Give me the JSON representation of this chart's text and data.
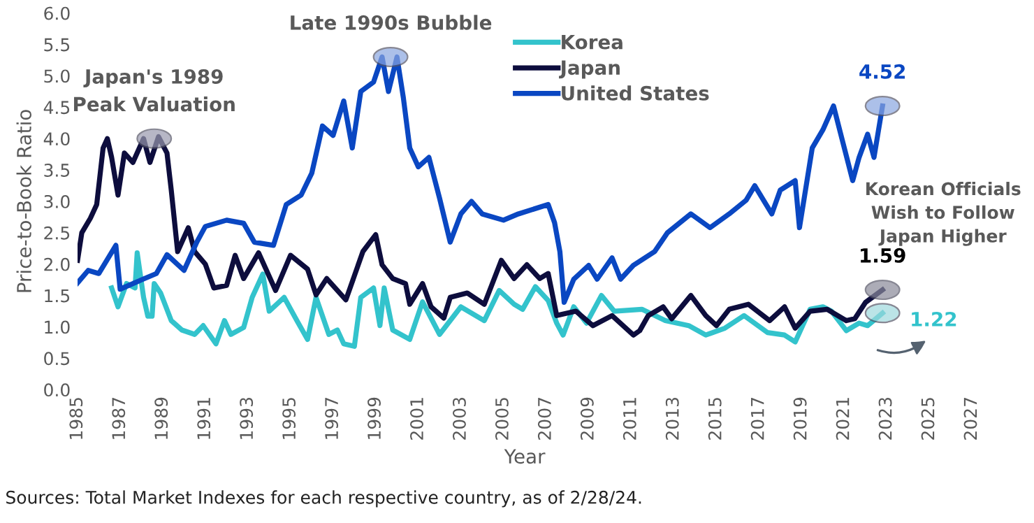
{
  "chart_data": {
    "type": "line",
    "xlabel": "Year",
    "ylabel": "Price-to-Book Ratio",
    "xlim": [
      1985,
      2027
    ],
    "xticks": [
      1985,
      1987,
      1989,
      1991,
      1993,
      1995,
      1997,
      1999,
      2001,
      2003,
      2005,
      2007,
      2009,
      2011,
      2013,
      2015,
      2017,
      2019,
      2021,
      2023,
      2025,
      2027
    ],
    "ylim": [
      0.0,
      6.0
    ],
    "yticks": [
      {
        "value": 0,
        "label": "0.0"
      },
      0.5,
      {
        "value": 1,
        "label": "1.0"
      },
      1.5,
      {
        "value": 2,
        "label": "2.0"
      },
      2.5,
      {
        "value": 3,
        "label": "3.0"
      },
      3.5,
      {
        "value": 4,
        "label": "4.0"
      },
      4.5,
      {
        "value": 5,
        "label": "5.0"
      },
      5.5,
      {
        "value": 6,
        "label": "6.0"
      }
    ],
    "grid": false,
    "legend": "top",
    "marker": "none",
    "line_style": "solid",
    "series": [
      {
        "name": "Korea",
        "color": "#33c3cc",
        "x": [
          1986.6,
          1986.9,
          1987.3,
          1987.7,
          1987.8,
          1988.1,
          1988.3,
          1988.5,
          1988.6,
          1988.9,
          1989.4,
          1989.9,
          1990.5,
          1990.9,
          1991.5,
          1991.9,
          1992.2,
          1992.8,
          1993.2,
          1993.7,
          1994.0,
          1994.7,
          1995.3,
          1995.8,
          1996.2,
          1996.8,
          1997.2,
          1997.5,
          1998.0,
          1998.3,
          1998.9,
          1999.2,
          1999.4,
          1999.8,
          2000.6,
          2001.2,
          2002.0,
          2003.0,
          2004.1,
          2004.8,
          2005.5,
          2005.9,
          2006.5,
          2007.1,
          2007.5,
          2007.8,
          2008.3,
          2008.9,
          2009.6,
          2010.2,
          2011.5,
          2012.6,
          2013.7,
          2014.5,
          2015.4,
          2016.3,
          2017.4,
          2018.2,
          2018.7,
          2019.4,
          2020.0,
          2020.4,
          2021.1,
          2021.7,
          2022.1,
          2022.8
        ],
        "values": [
          1.62,
          1.32,
          1.69,
          1.62,
          2.18,
          1.47,
          1.17,
          1.17,
          1.69,
          1.54,
          1.1,
          0.95,
          0.88,
          1.02,
          0.73,
          1.1,
          0.88,
          0.99,
          1.47,
          1.84,
          1.25,
          1.47,
          1.1,
          0.8,
          1.47,
          0.88,
          0.95,
          0.73,
          0.69,
          1.47,
          1.62,
          1.02,
          1.62,
          0.95,
          0.8,
          1.4,
          0.88,
          1.32,
          1.1,
          1.58,
          1.36,
          1.28,
          1.64,
          1.42,
          1.06,
          0.87,
          1.32,
          1.06,
          1.5,
          1.25,
          1.28,
          1.1,
          1.02,
          0.87,
          0.98,
          1.18,
          0.91,
          0.87,
          0.76,
          1.28,
          1.32,
          1.25,
          0.94,
          1.06,
          1.02,
          1.22
        ]
      },
      {
        "name": "Japan",
        "color": "#0d0d3d",
        "x": [
          1985.0,
          1985.2,
          1985.6,
          1985.9,
          1986.2,
          1986.4,
          1986.6,
          1986.9,
          1987.2,
          1987.6,
          1988.1,
          1988.4,
          1988.8,
          1989.2,
          1989.4,
          1989.7,
          1990.2,
          1990.5,
          1991.0,
          1991.4,
          1992.0,
          1992.4,
          1992.8,
          1993.5,
          1994.3,
          1995.0,
          1995.8,
          1996.2,
          1996.7,
          1997.6,
          1998.4,
          1999.0,
          1999.3,
          1999.8,
          2000.4,
          2000.6,
          2001.2,
          2001.6,
          2002.2,
          2002.5,
          2003.3,
          2004.1,
          2004.9,
          2005.5,
          2006.1,
          2006.7,
          2007.1,
          2007.5,
          2008.4,
          2009.2,
          2010.1,
          2011.1,
          2011.4,
          2011.8,
          2012.5,
          2012.9,
          2013.8,
          2014.5,
          2015.0,
          2015.6,
          2016.5,
          2017.5,
          2018.2,
          2018.7,
          2019.4,
          2020.2,
          2021.1,
          2021.5,
          2022.0,
          2022.8
        ],
        "values": [
          2.06,
          2.5,
          2.73,
          2.95,
          3.85,
          4.0,
          3.7,
          3.1,
          3.77,
          3.62,
          4.0,
          3.62,
          4.03,
          3.77,
          3.18,
          2.2,
          2.58,
          2.2,
          2.0,
          1.62,
          1.66,
          2.14,
          1.77,
          2.18,
          1.58,
          2.14,
          1.92,
          1.51,
          1.77,
          1.43,
          2.2,
          2.47,
          1.99,
          1.77,
          1.69,
          1.36,
          1.69,
          1.32,
          1.14,
          1.47,
          1.54,
          1.36,
          2.06,
          1.77,
          1.99,
          1.77,
          1.85,
          1.18,
          1.25,
          1.02,
          1.18,
          0.87,
          0.94,
          1.18,
          1.32,
          1.13,
          1.5,
          1.18,
          1.02,
          1.28,
          1.36,
          1.1,
          1.32,
          0.98,
          1.25,
          1.28,
          1.1,
          1.13,
          1.39,
          1.59
        ]
      },
      {
        "name": "United States",
        "color": "#0a47c2",
        "x": [
          1985.0,
          1985.5,
          1986.0,
          1986.8,
          1987.0,
          1988.0,
          1988.7,
          1989.2,
          1990.0,
          1990.6,
          1991.0,
          1992.0,
          1992.8,
          1993.3,
          1994.2,
          1994.8,
          1995.5,
          1996.0,
          1996.5,
          1997.0,
          1997.5,
          1997.9,
          1998.3,
          1998.9,
          1999.3,
          1999.6,
          2000.0,
          2000.3,
          2000.6,
          2001.0,
          2001.5,
          2002.0,
          2002.5,
          2003.0,
          2003.5,
          2004.0,
          2005.0,
          2005.7,
          2007.1,
          2007.4,
          2007.65,
          2007.85,
          2008.3,
          2009.0,
          2009.4,
          2010.1,
          2010.5,
          2011.1,
          2012.1,
          2012.7,
          2013.8,
          2014.7,
          2015.6,
          2016.4,
          2016.8,
          2017.6,
          2018.0,
          2018.7,
          2018.9,
          2019.5,
          2020.0,
          2020.5,
          2020.9,
          2021.4,
          2021.7,
          2022.1,
          2022.4,
          2022.8
        ],
        "values": [
          1.7,
          1.9,
          1.85,
          2.3,
          1.6,
          1.75,
          1.85,
          2.15,
          1.9,
          2.35,
          2.6,
          2.7,
          2.65,
          2.35,
          2.3,
          2.95,
          3.1,
          3.45,
          4.2,
          4.05,
          4.6,
          3.85,
          4.75,
          4.9,
          5.3,
          4.75,
          5.3,
          4.65,
          3.85,
          3.55,
          3.7,
          3.05,
          2.35,
          2.8,
          3.0,
          2.8,
          2.7,
          2.8,
          2.95,
          2.66,
          2.2,
          1.39,
          1.76,
          1.98,
          1.76,
          2.1,
          1.76,
          1.98,
          2.2,
          2.5,
          2.8,
          2.58,
          2.8,
          3.02,
          3.25,
          2.8,
          3.18,
          3.33,
          2.58,
          3.85,
          4.14,
          4.52,
          3.99,
          3.33,
          3.7,
          4.07,
          3.7,
          4.52
        ]
      }
    ],
    "annotations": [
      {
        "text": "Japan's 1989\nPeak Valuation",
        "x": 1988.6,
        "y": 4.0
      },
      {
        "text": "Late 1990s Bubble",
        "x": 1999.7,
        "y": 5.3
      },
      {
        "text": "4.52",
        "x": 2022.8,
        "y": 4.52
      },
      {
        "text": "1.59",
        "x": 2022.8,
        "y": 1.59
      },
      {
        "text": "1.22",
        "x": 2022.8,
        "y": 1.22
      },
      "Korean Officials\nWish to Follow\nJapan Higher",
      "Sources: Total Market Indexes for each respective country, as of 2/28/24."
    ]
  }
}
